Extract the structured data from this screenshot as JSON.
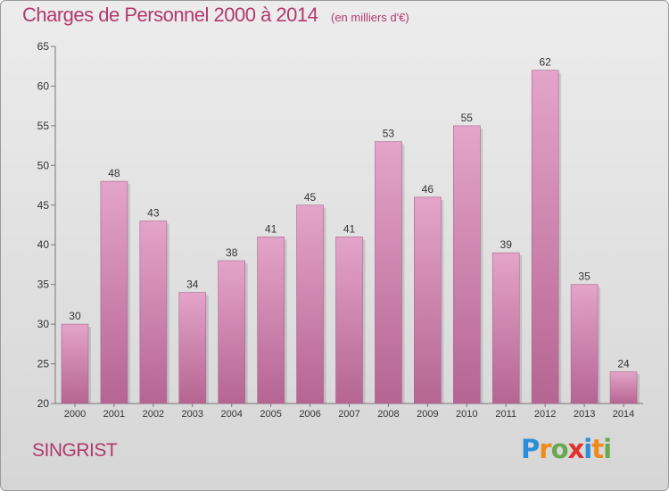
{
  "header": {
    "title": "Charges de Personnel 2000 à 2014",
    "subtitle": "(en milliers d'€)"
  },
  "footer": {
    "commune": "SINGRIST",
    "brand": {
      "letters": [
        "P",
        "r",
        "o",
        "x",
        "i",
        "t",
        "i"
      ],
      "colors": [
        "#2a8fd6",
        "#f08a1c",
        "#6aa84f",
        "#e0312b",
        "#2a8fd6",
        "#f08a1c",
        "#6aa84f"
      ]
    }
  },
  "chart_data": {
    "type": "bar",
    "categories": [
      "2000",
      "2001",
      "2002",
      "2003",
      "2004",
      "2005",
      "2006",
      "2007",
      "2008",
      "2009",
      "2010",
      "2011",
      "2012",
      "2013",
      "2014"
    ],
    "values": [
      30,
      48,
      43,
      34,
      38,
      41,
      45,
      41,
      53,
      46,
      55,
      39,
      62,
      35,
      24
    ],
    "ylim": [
      20,
      65
    ],
    "yticks": [
      20,
      25,
      30,
      35,
      40,
      45,
      50,
      55,
      60,
      65
    ],
    "grid": false,
    "bar_color": "#d68ab5",
    "bar_color_dark": "#b56592"
  }
}
